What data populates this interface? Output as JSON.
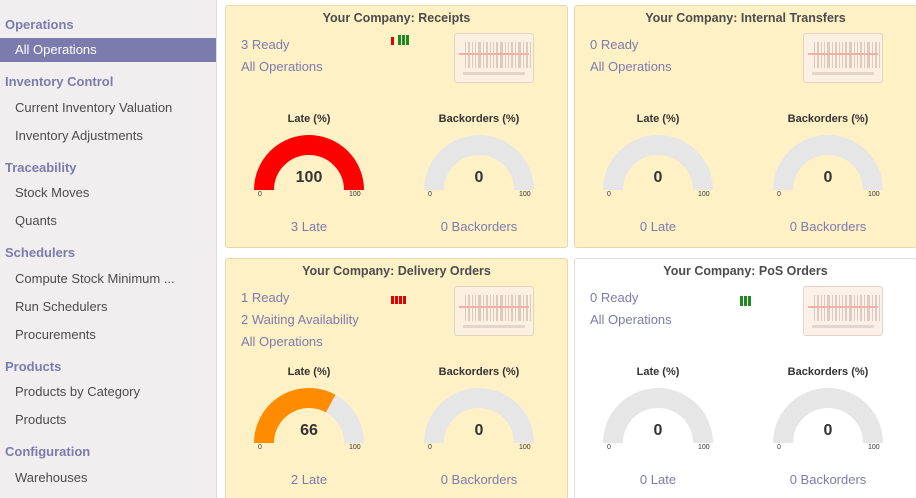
{
  "sidebar": {
    "sections": [
      {
        "title": "Operations",
        "items": [
          {
            "label": "All Operations",
            "active": true
          }
        ]
      },
      {
        "title": "Inventory Control",
        "items": [
          {
            "label": "Current Inventory Valuation"
          },
          {
            "label": "Inventory Adjustments"
          }
        ]
      },
      {
        "title": "Traceability",
        "items": [
          {
            "label": "Stock Moves"
          },
          {
            "label": "Quants"
          }
        ]
      },
      {
        "title": "Schedulers",
        "items": [
          {
            "label": "Compute Stock Minimum ..."
          },
          {
            "label": "Run Schedulers"
          },
          {
            "label": "Procurements"
          }
        ]
      },
      {
        "title": "Products",
        "items": [
          {
            "label": "Products by Category"
          },
          {
            "label": "Products"
          }
        ]
      },
      {
        "title": "Configuration",
        "items": [
          {
            "label": "Warehouses"
          }
        ]
      }
    ]
  },
  "colors": {
    "accent": "#7c7bad",
    "card_bg": "#fff1c6",
    "late_full": "#ff0000",
    "late_partial": "#ff8c00",
    "gauge_empty": "#e6e6e6",
    "bar_green": "#1f8a1f",
    "bar_red": "#e60000"
  },
  "cards": [
    {
      "title": "Your Company: Receipts",
      "white": false,
      "links": [
        "3 Ready",
        "All Operations"
      ],
      "bars": [
        "red-short",
        "green",
        "green",
        "green"
      ],
      "barcode_icon": "barcode-icon",
      "late": {
        "label": "Late (%)",
        "value": 100,
        "min": "0",
        "max": "100",
        "footer": "3 Late"
      },
      "backorders": {
        "label": "Backorders (%)",
        "value": 0,
        "min": "0",
        "max": "100",
        "footer": "0 Backorders"
      }
    },
    {
      "title": "Your Company: Internal Transfers",
      "white": false,
      "links": [
        "0 Ready",
        "All Operations"
      ],
      "bars": [],
      "barcode_icon": "barcode-icon",
      "late": {
        "label": "Late (%)",
        "value": 0,
        "min": "0",
        "max": "100",
        "footer": "0 Late"
      },
      "backorders": {
        "label": "Backorders (%)",
        "value": 0,
        "min": "0",
        "max": "100",
        "footer": "0 Backorders"
      }
    },
    {
      "title": "Your Company: Delivery Orders",
      "white": false,
      "links": [
        "1 Ready",
        "2 Waiting Availability",
        "All Operations"
      ],
      "bars": [
        "red",
        "red",
        "red",
        "red"
      ],
      "barcode_icon": "barcode-icon",
      "late": {
        "label": "Late (%)",
        "value": 66,
        "min": "0",
        "max": "100",
        "footer": "2 Late"
      },
      "backorders": {
        "label": "Backorders (%)",
        "value": 0,
        "min": "0",
        "max": "100",
        "footer": "0 Backorders"
      }
    },
    {
      "title": "Your Company: PoS Orders",
      "white": true,
      "links": [
        "0 Ready",
        "All Operations"
      ],
      "bars": [
        "green",
        "green",
        "green"
      ],
      "barcode_icon": "barcode-icon",
      "late": {
        "label": "Late (%)",
        "value": 0,
        "min": "0",
        "max": "100",
        "footer": "0 Late"
      },
      "backorders": {
        "label": "Backorders (%)",
        "value": 0,
        "min": "0",
        "max": "100",
        "footer": "0 Backorders"
      }
    }
  ]
}
